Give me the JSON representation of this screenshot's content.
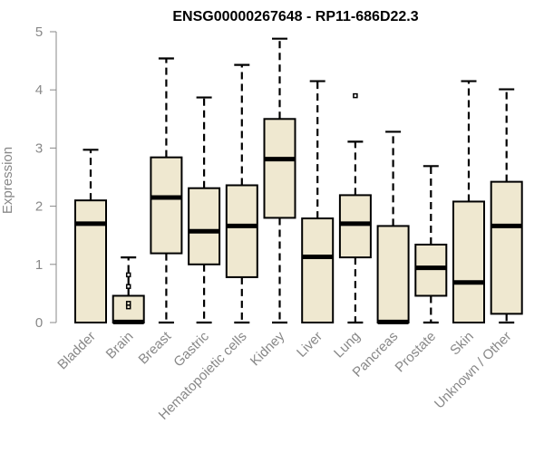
{
  "chart_data": {
    "type": "boxplot",
    "title": "ENSG00000267648 - RP11-686D22.3",
    "xlabel": "",
    "ylabel": "Expression",
    "ylim": [
      0,
      5
    ],
    "yticks": [
      0,
      1,
      2,
      3,
      4,
      5
    ],
    "categories": [
      "Bladder",
      "Brain",
      "Breast",
      "Gastric",
      "Hematopoietic cells",
      "Kidney",
      "Liver",
      "Lung",
      "Pancreas",
      "Prostate",
      "Skin",
      "Unknown / Other"
    ],
    "boxes": [
      {
        "name": "Bladder",
        "min": 0,
        "q1": 0,
        "median": 1.7,
        "q3": 2.1,
        "max": 2.97,
        "outliers": []
      },
      {
        "name": "Brain",
        "min": 0,
        "q1": 0,
        "median": 0.01,
        "q3": 0.46,
        "max": 1.12,
        "outliers": [
          0.27,
          0.33,
          0.62,
          0.82
        ]
      },
      {
        "name": "Breast",
        "min": 0,
        "q1": 1.19,
        "median": 2.15,
        "q3": 2.84,
        "max": 4.54,
        "outliers": []
      },
      {
        "name": "Gastric",
        "min": 0,
        "q1": 1.0,
        "median": 1.57,
        "q3": 2.31,
        "max": 3.87,
        "outliers": []
      },
      {
        "name": "Hematopoietic cells",
        "min": 0,
        "q1": 0.78,
        "median": 1.66,
        "q3": 2.36,
        "max": 4.43,
        "outliers": []
      },
      {
        "name": "Kidney",
        "min": 0,
        "q1": 1.8,
        "median": 2.81,
        "q3": 3.5,
        "max": 4.88,
        "outliers": []
      },
      {
        "name": "Liver",
        "min": 0,
        "q1": 0,
        "median": 1.13,
        "q3": 1.79,
        "max": 4.15,
        "outliers": []
      },
      {
        "name": "Lung",
        "min": 0,
        "q1": 1.12,
        "median": 1.7,
        "q3": 2.19,
        "max": 3.11,
        "outliers": [
          3.9
        ]
      },
      {
        "name": "Pancreas",
        "min": 0,
        "q1": 0,
        "median": 0.01,
        "q3": 1.66,
        "max": 3.28,
        "outliers": []
      },
      {
        "name": "Prostate",
        "min": 0,
        "q1": 0.46,
        "median": 0.94,
        "q3": 1.34,
        "max": 2.69,
        "outliers": []
      },
      {
        "name": "Skin",
        "min": 0,
        "q1": 0,
        "median": 0.69,
        "q3": 2.08,
        "max": 4.15,
        "outliers": []
      },
      {
        "name": "Unknown / Other",
        "min": 0,
        "q1": 0.15,
        "median": 1.66,
        "q3": 2.42,
        "max": 4.01,
        "outliers": []
      }
    ],
    "colors": {
      "box_fill": "#efe8d0",
      "stroke": "#000000",
      "axis": "#888888"
    }
  }
}
